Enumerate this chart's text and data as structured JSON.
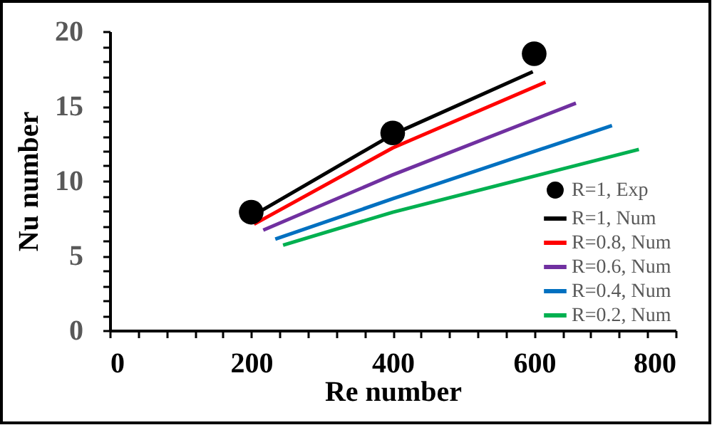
{
  "chart_data": {
    "type": "line",
    "xlabel": "Re number",
    "ylabel": "Nu number",
    "xlim": [
      0,
      800
    ],
    "ylim": [
      0,
      20
    ],
    "xticks": [
      0,
      {
        "value": 40,
        "label": null
      },
      {
        "value": 80,
        "label": null
      },
      {
        "value": 120,
        "label": null
      },
      {
        "value": 160,
        "label": null
      },
      200,
      {
        "value": 240,
        "label": null
      },
      {
        "value": 280,
        "label": null
      },
      {
        "value": 320,
        "label": null
      },
      {
        "value": 360,
        "label": null
      },
      400,
      {
        "value": 440,
        "label": null
      },
      {
        "value": 480,
        "label": null
      },
      {
        "value": 520,
        "label": null
      },
      {
        "value": 560,
        "label": null
      },
      600,
      {
        "value": 640,
        "label": null
      },
      {
        "value": 680,
        "label": null
      },
      {
        "value": 720,
        "label": null
      },
      {
        "value": 760,
        "label": null
      },
      800
    ],
    "yticks": [
      0,
      {
        "value": 1,
        "label": null
      },
      {
        "value": 2,
        "label": null
      },
      {
        "value": 3,
        "label": null
      },
      {
        "value": 4,
        "label": null
      },
      5,
      {
        "value": 6,
        "label": null
      },
      {
        "value": 7,
        "label": null
      },
      {
        "value": 8,
        "label": null
      },
      {
        "value": 9,
        "label": null
      },
      10,
      {
        "value": 11,
        "label": null
      },
      {
        "value": 12,
        "label": null
      },
      {
        "value": 13,
        "label": null
      },
      {
        "value": 14,
        "label": null
      },
      15,
      {
        "value": 16,
        "label": null
      },
      {
        "value": 17,
        "label": null
      },
      {
        "value": 18,
        "label": null
      },
      {
        "value": 19,
        "label": null
      },
      20
    ],
    "grid": false,
    "legend": "bottom right",
    "series": [
      {
        "name": "R=1, Exp",
        "type": "scatter",
        "marker": "circle",
        "color": "#000000",
        "x": [
          200,
          400,
          600
        ],
        "values": [
          7.9,
          13.2,
          18.5
        ]
      },
      {
        "name": "R=1, Num",
        "color": "#000000",
        "x": [
          207,
          400,
          598
        ],
        "values": [
          7.8,
          13.1,
          17.3
        ]
      },
      {
        "name": "R=0.8, Num",
        "color": "#ff0000",
        "x": [
          204,
          400,
          616
        ],
        "values": [
          7.1,
          12.2,
          16.6
        ]
      },
      {
        "name": "R=0.6, Num",
        "color": "#7030a0",
        "x": [
          217,
          400,
          659
        ],
        "values": [
          6.7,
          10.4,
          15.2
        ]
      },
      {
        "name": "R=0.4, Num",
        "color": "#0070c0",
        "x": [
          234,
          400,
          710
        ],
        "values": [
          6.1,
          8.8,
          13.7
        ]
      },
      {
        "name": "R=0.2, Num",
        "color": "#00b050",
        "x": [
          245,
          400,
          748
        ],
        "values": [
          5.7,
          7.9,
          12.1
        ]
      }
    ]
  }
}
